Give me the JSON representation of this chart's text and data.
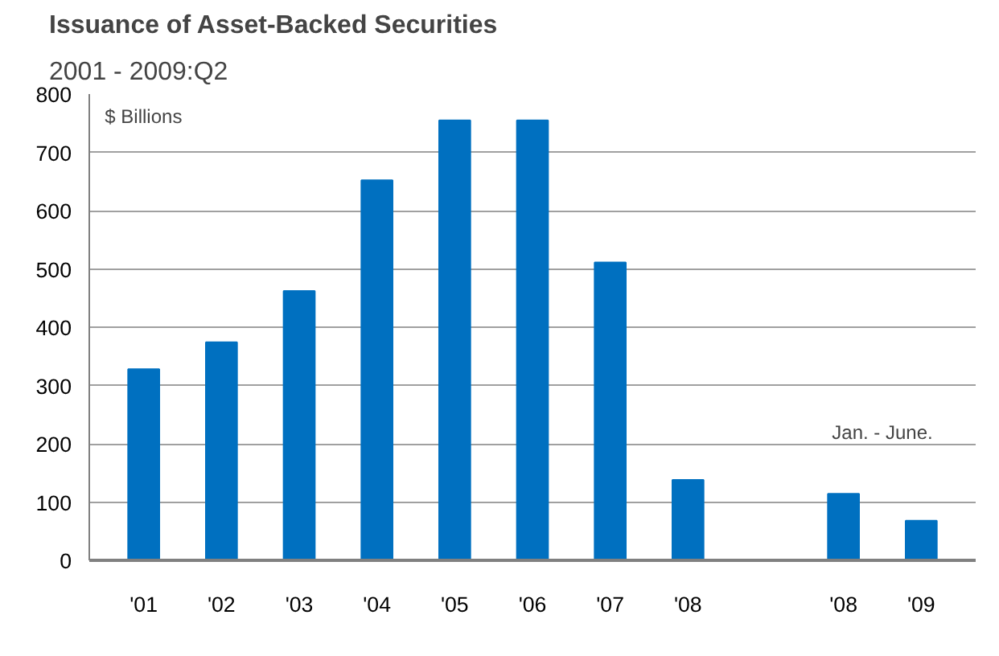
{
  "chart_data": {
    "type": "bar",
    "title": "Issuance of Asset-Backed Securities",
    "subtitle": "2001 - 2009:Q2",
    "ylabel": "$ Billions",
    "categories": [
      "'01",
      "'02",
      "'03",
      "'04",
      "'05",
      "'06",
      "'07",
      "'08",
      null,
      "'08",
      "'09"
    ],
    "values": [
      328,
      374,
      462,
      652,
      755,
      755,
      511,
      138,
      null,
      114,
      68
    ],
    "color": "#0070c0",
    "ylim": [
      0,
      800
    ],
    "yticks": [
      0,
      100,
      200,
      300,
      400,
      500,
      600,
      700,
      800
    ],
    "grid": "y",
    "annotations": [
      "Jan. - June."
    ]
  }
}
